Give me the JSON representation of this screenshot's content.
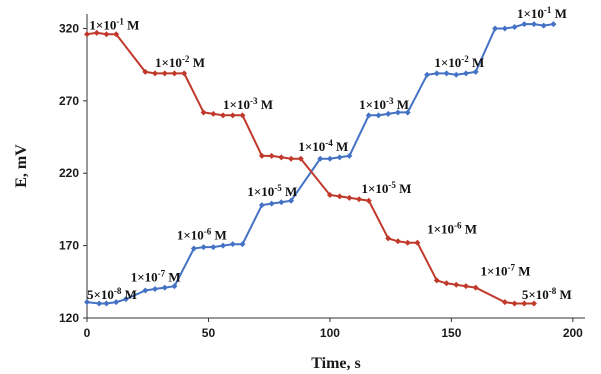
{
  "chart_data": {
    "type": "line",
    "xlabel": "Time, s",
    "ylabel": "E, mV",
    "xlim": [
      0,
      205
    ],
    "ylim": [
      120,
      330
    ],
    "x_ticks": [
      0,
      50,
      100,
      150,
      200
    ],
    "y_ticks": [
      120,
      170,
      220,
      270,
      320
    ],
    "grid": false,
    "series": [
      {
        "color": "#4472c4",
        "points": [
          [
            0,
            131
          ],
          [
            5,
            130
          ],
          [
            8,
            130
          ],
          [
            12,
            131
          ],
          [
            16,
            133
          ],
          [
            24,
            139
          ],
          [
            28,
            140
          ],
          [
            32,
            141
          ],
          [
            36,
            142
          ],
          [
            44,
            168
          ],
          [
            48,
            169
          ],
          [
            52,
            169
          ],
          [
            56,
            170
          ],
          [
            60,
            171
          ],
          [
            64,
            171
          ],
          [
            72,
            198
          ],
          [
            76,
            199
          ],
          [
            80,
            200
          ],
          [
            84,
            201
          ],
          [
            96,
            230
          ],
          [
            100,
            230
          ],
          [
            104,
            231
          ],
          [
            108,
            232
          ],
          [
            116,
            260
          ],
          [
            120,
            260
          ],
          [
            124,
            261
          ],
          [
            128,
            262
          ],
          [
            132,
            262
          ],
          [
            140,
            288
          ],
          [
            144,
            289
          ],
          [
            148,
            289
          ],
          [
            152,
            288
          ],
          [
            156,
            289
          ],
          [
            160,
            290
          ],
          [
            168,
            320
          ],
          [
            172,
            320
          ],
          [
            176,
            321
          ],
          [
            180,
            323
          ],
          [
            184,
            323
          ],
          [
            188,
            322
          ],
          [
            192,
            323
          ]
        ]
      },
      {
        "color": "#c0392b",
        "points": [
          [
            0,
            316
          ],
          [
            4,
            317
          ],
          [
            8,
            316
          ],
          [
            12,
            316
          ],
          [
            24,
            290
          ],
          [
            28,
            289
          ],
          [
            32,
            289
          ],
          [
            36,
            289
          ],
          [
            40,
            289
          ],
          [
            48,
            262
          ],
          [
            52,
            261
          ],
          [
            56,
            260
          ],
          [
            60,
            260
          ],
          [
            64,
            260
          ],
          [
            72,
            232
          ],
          [
            76,
            232
          ],
          [
            80,
            231
          ],
          [
            84,
            230
          ],
          [
            88,
            230
          ],
          [
            100,
            205
          ],
          [
            104,
            204
          ],
          [
            108,
            203
          ],
          [
            112,
            202
          ],
          [
            116,
            201
          ],
          [
            124,
            175
          ],
          [
            128,
            173
          ],
          [
            132,
            172
          ],
          [
            136,
            172
          ],
          [
            144,
            146
          ],
          [
            148,
            144
          ],
          [
            152,
            143
          ],
          [
            156,
            142
          ],
          [
            160,
            141
          ],
          [
            172,
            131
          ],
          [
            176,
            130
          ],
          [
            180,
            130
          ],
          [
            184,
            130
          ]
        ]
      }
    ],
    "annotations": [
      {
        "base": "1×10",
        "exp": "-1",
        "unit": " M",
        "x": 1,
        "y": 322
      },
      {
        "base": "1×10",
        "exp": "-2",
        "unit": " M",
        "x": 28,
        "y": 296
      },
      {
        "base": "1×10",
        "exp": "-3",
        "unit": " M",
        "x": 56,
        "y": 267
      },
      {
        "base": "1×10",
        "exp": "-4",
        "unit": " M",
        "x": 87,
        "y": 238
      },
      {
        "base": "1×10",
        "exp": "-5",
        "unit": " M",
        "x": 66,
        "y": 207
      },
      {
        "base": "1×10",
        "exp": "-5",
        "unit": " M",
        "x": 113,
        "y": 209
      },
      {
        "base": "1×10",
        "exp": "-6",
        "unit": " M",
        "x": 37,
        "y": 177
      },
      {
        "base": "1×10",
        "exp": "-6",
        "unit": " M",
        "x": 140,
        "y": 181
      },
      {
        "base": "1×10",
        "exp": "-7",
        "unit": " M",
        "x": 18,
        "y": 148
      },
      {
        "base": "1×10",
        "exp": "-7",
        "unit": " M",
        "x": 162,
        "y": 152
      },
      {
        "base": "5×10",
        "exp": "-8",
        "unit": " M",
        "x": 0,
        "y": 136
      },
      {
        "base": "5×10",
        "exp": "-8",
        "unit": " M",
        "x": 179,
        "y": 136
      },
      {
        "base": "1×10",
        "exp": "-2",
        "unit": " M",
        "x": 143,
        "y": 296
      },
      {
        "base": "1×10",
        "exp": "-3",
        "unit": " M",
        "x": 112,
        "y": 267
      },
      {
        "base": "1×10",
        "exp": "-1",
        "unit": " M",
        "x": 177,
        "y": 330
      }
    ]
  }
}
